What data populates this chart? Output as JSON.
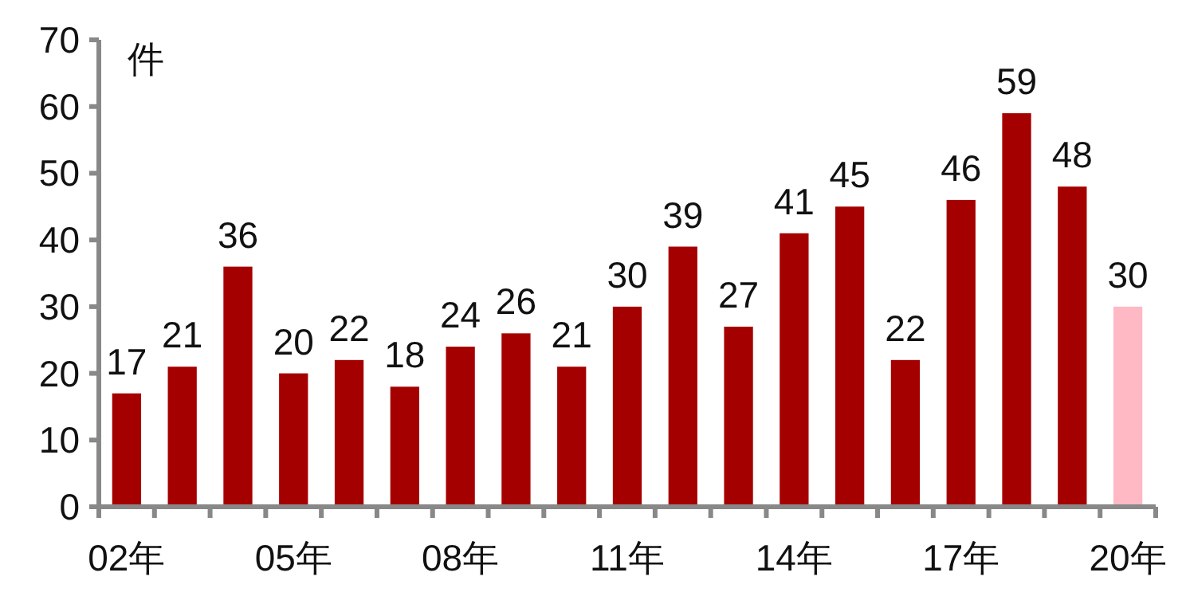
{
  "chart_data": {
    "type": "bar",
    "ylabel": "件",
    "categories": [
      "02年",
      null,
      null,
      "05年",
      null,
      null,
      "08年",
      null,
      null,
      "11年",
      null,
      null,
      "14年",
      null,
      null,
      "17年",
      null,
      null,
      "20年"
    ],
    "values": [
      17,
      21,
      36,
      20,
      22,
      18,
      24,
      26,
      21,
      30,
      39,
      27,
      41,
      45,
      22,
      46,
      59,
      48,
      30
    ],
    "colors": [
      "#a50000",
      "#a50000",
      "#a50000",
      "#a50000",
      "#a50000",
      "#a50000",
      "#a50000",
      "#a50000",
      "#a50000",
      "#a50000",
      "#a50000",
      "#a50000",
      "#a50000",
      "#a50000",
      "#a50000",
      "#a50000",
      "#a50000",
      "#a50000",
      "#ffb9c4"
    ],
    "ylim": [
      0,
      70
    ],
    "yticks": [
      0,
      10,
      20,
      30,
      40,
      50,
      60,
      70
    ],
    "data_labels": true,
    "grid": false
  }
}
